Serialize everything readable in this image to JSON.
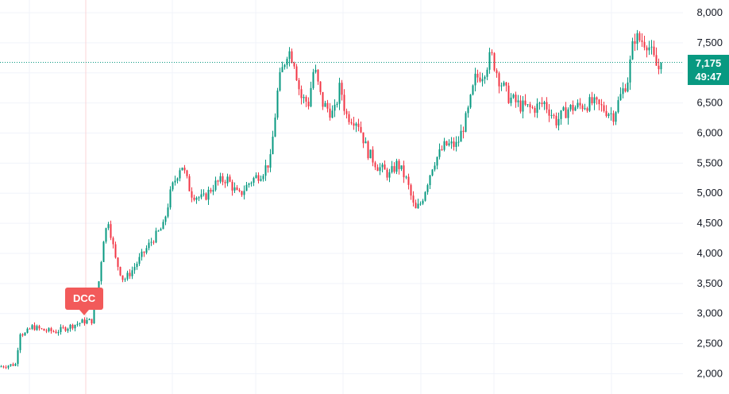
{
  "chart_data": {
    "type": "candlestick",
    "y_ticks": [
      "2,000",
      "2,500",
      "3,000",
      "3,500",
      "4,000",
      "4,500",
      "5,000",
      "5,500",
      "6,000",
      "6,500",
      "7,000",
      "7,500",
      "8,000"
    ],
    "y_tick_values": [
      2000,
      2500,
      3000,
      3500,
      4000,
      4500,
      5000,
      5500,
      6000,
      6500,
      7000,
      7500,
      8000
    ],
    "ylim": [
      1980,
      8000
    ],
    "grid": true,
    "up_color": "#089981",
    "down_color": "#f23645",
    "current_price": 7175,
    "current_price_label": "7,175",
    "countdown": "49:47",
    "event_label": "DCC",
    "event_color": "#f25a5a",
    "trend": [
      [
        0,
        2120
      ],
      [
        20,
        2160
      ],
      [
        24,
        2700
      ],
      [
        30,
        2650
      ],
      [
        40,
        2780
      ],
      [
        55,
        2720
      ],
      [
        70,
        2700
      ],
      [
        90,
        2800
      ],
      [
        105,
        2870
      ],
      [
        115,
        2880
      ],
      [
        122,
        3300
      ],
      [
        130,
        4250
      ],
      [
        136,
        4550
      ],
      [
        145,
        3900
      ],
      [
        155,
        3550
      ],
      [
        165,
        3700
      ],
      [
        175,
        3900
      ],
      [
        190,
        4200
      ],
      [
        205,
        4450
      ],
      [
        215,
        5050
      ],
      [
        228,
        5500
      ],
      [
        240,
        5000
      ],
      [
        255,
        4900
      ],
      [
        270,
        5150
      ],
      [
        285,
        5250
      ],
      [
        300,
        4950
      ],
      [
        315,
        5200
      ],
      [
        330,
        5350
      ],
      [
        340,
        5550
      ],
      [
        350,
        6800
      ],
      [
        362,
        7400
      ],
      [
        370,
        7200
      ],
      [
        378,
        6600
      ],
      [
        388,
        6500
      ],
      [
        395,
        7100
      ],
      [
        405,
        6500
      ],
      [
        420,
        6300
      ],
      [
        428,
        6800
      ],
      [
        435,
        6300
      ],
      [
        450,
        6200
      ],
      [
        462,
        5700
      ],
      [
        475,
        5450
      ],
      [
        490,
        5300
      ],
      [
        500,
        5500
      ],
      [
        512,
        5200
      ],
      [
        522,
        4700
      ],
      [
        530,
        4850
      ],
      [
        545,
        5500
      ],
      [
        560,
        5800
      ],
      [
        575,
        5800
      ],
      [
        588,
        6300
      ],
      [
        598,
        6900
      ],
      [
        608,
        7000
      ],
      [
        618,
        7300
      ],
      [
        628,
        6900
      ],
      [
        640,
        6600
      ],
      [
        655,
        6450
      ],
      [
        670,
        6400
      ],
      [
        685,
        6500
      ],
      [
        700,
        6200
      ],
      [
        715,
        6400
      ],
      [
        730,
        6450
      ],
      [
        745,
        6500
      ],
      [
        760,
        6400
      ],
      [
        772,
        6300
      ],
      [
        782,
        6650
      ],
      [
        790,
        6900
      ],
      [
        798,
        7600
      ],
      [
        805,
        7550
      ],
      [
        815,
        7500
      ],
      [
        822,
        7250
      ],
      [
        828,
        7050
      ],
      [
        834,
        7175
      ]
    ]
  }
}
